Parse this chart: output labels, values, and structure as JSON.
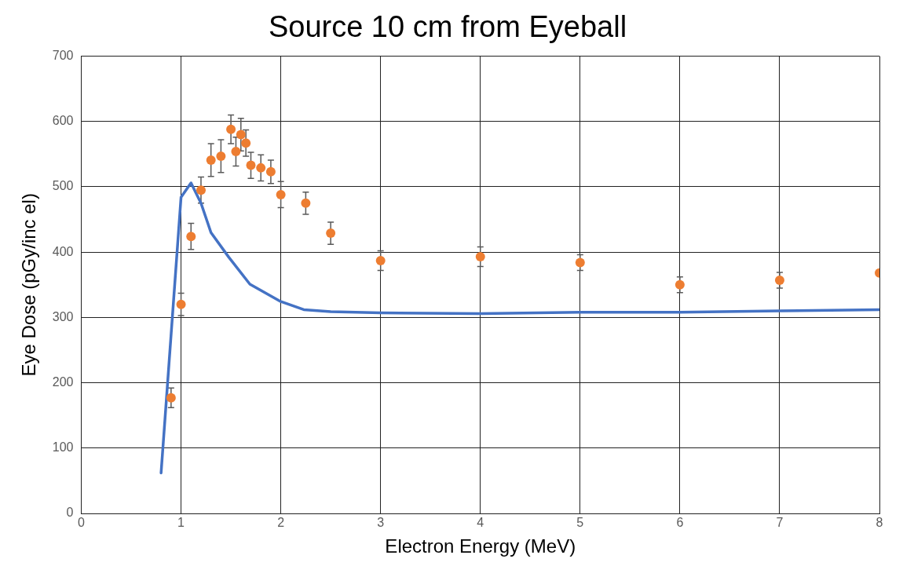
{
  "chart_data": {
    "type": "scatter",
    "title": "Source 10 cm from Eyeball",
    "xlabel": "Electron Energy (MeV)",
    "ylabel": "Eye Dose (pGy/inc el)",
    "xlim": [
      0,
      8
    ],
    "xticks": [
      0,
      1,
      2,
      3,
      4,
      5,
      6,
      7,
      8
    ],
    "ylim": [
      0,
      700
    ],
    "yticks": [
      0,
      100,
      200,
      300,
      400,
      500,
      600,
      700
    ],
    "grid": true,
    "marker": "circle",
    "series": [
      {
        "color": "#ed7d31",
        "x": [
          0.9,
          1.0,
          1.1,
          1.2,
          1.3,
          1.4,
          1.5,
          1.55,
          1.6,
          1.65,
          1.7,
          1.8,
          1.9,
          2.0,
          2.25,
          2.5,
          3,
          4,
          5,
          6,
          7,
          8
        ],
        "values": [
          177,
          320,
          424,
          495,
          541,
          547,
          588,
          554,
          580,
          567,
          533,
          529,
          523,
          488,
          475,
          429,
          387,
          393,
          384,
          350,
          357,
          368
        ],
        "errors": [
          15,
          17,
          20,
          20,
          25,
          25,
          22,
          22,
          25,
          20,
          20,
          20,
          18,
          20,
          17,
          17,
          15,
          15,
          12,
          12,
          12,
          null
        ]
      },
      {
        "type": "line",
        "color": "#4472c4",
        "marker": "none",
        "x": [
          0.8,
          1.0,
          1.1,
          1.2,
          1.3,
          1.48,
          1.69,
          1.99,
          2.23,
          2.5,
          3,
          4,
          5,
          6,
          7,
          8
        ],
        "values": [
          62,
          484,
          506,
          475,
          430,
          392,
          351,
          325,
          312,
          309,
          307,
          306,
          308,
          308,
          310,
          312
        ]
      }
    ]
  }
}
